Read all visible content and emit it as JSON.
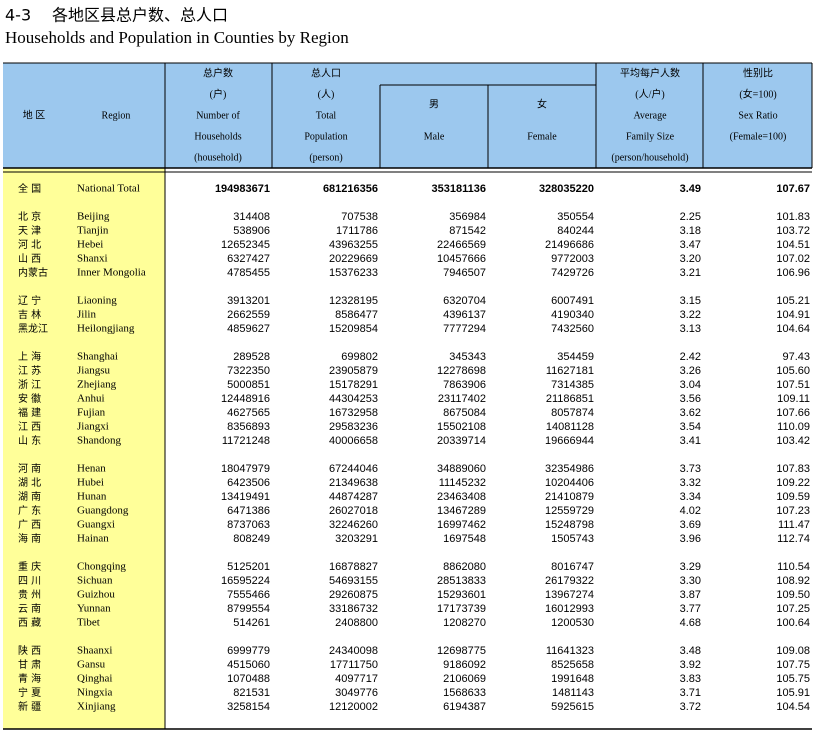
{
  "title_number": "4-3",
  "title_cn": "各地区县总户数、总人口",
  "title_en": "Households and Population in Counties by Region",
  "table": {
    "header": [
      [
        "地 区"
      ],
      [
        "Region"
      ],
      [
        "总户数",
        "(户)",
        "Number of",
        "Households",
        "(household)"
      ],
      [
        "总人口",
        "(人)",
        "Total",
        "Population",
        "(person)"
      ],
      [
        "男",
        "Male"
      ],
      [
        "女",
        "Female"
      ],
      [
        "平均每户人数",
        "(人/户)",
        "Average",
        "Family Size",
        "(person/household)"
      ],
      [
        "性别比",
        "(女=100)",
        "Sex Ratio",
        "(Female=100)"
      ]
    ],
    "groups": [
      [
        [
          "全 国",
          "National Total",
          "194983671",
          "681216356",
          "353181136",
          "328035220",
          "3.49",
          "107.67"
        ]
      ],
      [
        [
          "北 京",
          "Beijing",
          "314408",
          "707538",
          "356984",
          "350554",
          "2.25",
          "101.83"
        ],
        [
          "天 津",
          "Tianjin",
          "538906",
          "1711786",
          "871542",
          "840244",
          "3.18",
          "103.72"
        ],
        [
          "河 北",
          "Hebei",
          "12652345",
          "43963255",
          "22466569",
          "21496686",
          "3.47",
          "104.51"
        ],
        [
          "山 西",
          "Shanxi",
          "6327427",
          "20229669",
          "10457666",
          "9772003",
          "3.20",
          "107.02"
        ],
        [
          "内蒙古",
          "Inner Mongolia",
          "4785455",
          "15376233",
          "7946507",
          "7429726",
          "3.21",
          "106.96"
        ]
      ],
      [
        [
          "辽 宁",
          "Liaoning",
          "3913201",
          "12328195",
          "6320704",
          "6007491",
          "3.15",
          "105.21"
        ],
        [
          "吉 林",
          "Jilin",
          "2662559",
          "8586477",
          "4396137",
          "4190340",
          "3.22",
          "104.91"
        ],
        [
          "黑龙江",
          "Heilongjiang",
          "4859627",
          "15209854",
          "7777294",
          "7432560",
          "3.13",
          "104.64"
        ]
      ],
      [
        [
          "上 海",
          "Shanghai",
          "289528",
          "699802",
          "345343",
          "354459",
          "2.42",
          "97.43"
        ],
        [
          "江 苏",
          "Jiangsu",
          "7322350",
          "23905879",
          "12278698",
          "11627181",
          "3.26",
          "105.60"
        ],
        [
          "浙 江",
          "Zhejiang",
          "5000851",
          "15178291",
          "7863906",
          "7314385",
          "3.04",
          "107.51"
        ],
        [
          "安 徽",
          "Anhui",
          "12448916",
          "44304253",
          "23117402",
          "21186851",
          "3.56",
          "109.11"
        ],
        [
          "福 建",
          "Fujian",
          "4627565",
          "16732958",
          "8675084",
          "8057874",
          "3.62",
          "107.66"
        ],
        [
          "江 西",
          "Jiangxi",
          "8356893",
          "29583236",
          "15502108",
          "14081128",
          "3.54",
          "110.09"
        ],
        [
          "山 东",
          "Shandong",
          "11721248",
          "40006658",
          "20339714",
          "19666944",
          "3.41",
          "103.42"
        ]
      ],
      [
        [
          "河 南",
          "Henan",
          "18047979",
          "67244046",
          "34889060",
          "32354986",
          "3.73",
          "107.83"
        ],
        [
          "湖 北",
          "Hubei",
          "6423506",
          "21349638",
          "11145232",
          "10204406",
          "3.32",
          "109.22"
        ],
        [
          "湖 南",
          "Hunan",
          "13419491",
          "44874287",
          "23463408",
          "21410879",
          "3.34",
          "109.59"
        ],
        [
          "广 东",
          "Guangdong",
          "6471386",
          "26027018",
          "13467289",
          "12559729",
          "4.02",
          "107.23"
        ],
        [
          "广 西",
          "Guangxi",
          "8737063",
          "32246260",
          "16997462",
          "15248798",
          "3.69",
          "111.47"
        ],
        [
          "海 南",
          "Hainan",
          "808249",
          "3203291",
          "1697548",
          "1505743",
          "3.96",
          "112.74"
        ]
      ],
      [
        [
          "重 庆",
          "Chongqing",
          "5125201",
          "16878827",
          "8862080",
          "8016747",
          "3.29",
          "110.54"
        ],
        [
          "四 川",
          "Sichuan",
          "16595224",
          "54693155",
          "28513833",
          "26179322",
          "3.30",
          "108.92"
        ],
        [
          "贵 州",
          "Guizhou",
          "7555466",
          "29260875",
          "15293601",
          "13967274",
          "3.87",
          "109.50"
        ],
        [
          "云 南",
          "Yunnan",
          "8799554",
          "33186732",
          "17173739",
          "16012993",
          "3.77",
          "107.25"
        ],
        [
          "西 藏",
          "Tibet",
          "514261",
          "2408800",
          "1208270",
          "1200530",
          "4.68",
          "100.64"
        ]
      ],
      [
        [
          "陕 西",
          "Shaanxi",
          "6999779",
          "24340098",
          "12698775",
          "11641323",
          "3.48",
          "109.08"
        ],
        [
          "甘 肃",
          "Gansu",
          "4515060",
          "17711750",
          "9186092",
          "8525658",
          "3.92",
          "107.75"
        ],
        [
          "青 海",
          "Qinghai",
          "1070488",
          "4097717",
          "2106069",
          "1991648",
          "3.83",
          "105.75"
        ],
        [
          "宁 夏",
          "Ningxia",
          "821531",
          "3049776",
          "1568633",
          "1481143",
          "3.71",
          "105.91"
        ],
        [
          "新 疆",
          "Xinjiang",
          "3258154",
          "12120002",
          "6194387",
          "5925615",
          "3.72",
          "104.54"
        ]
      ]
    ]
  }
}
